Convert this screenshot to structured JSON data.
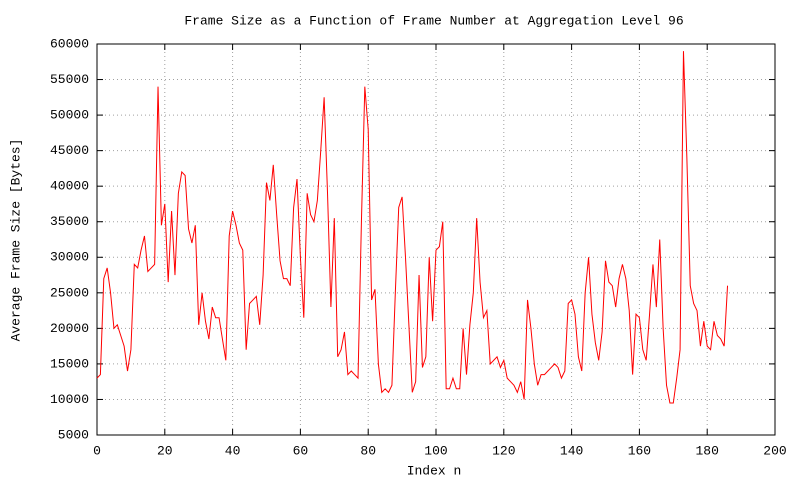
{
  "chart_data": {
    "type": "line",
    "title": "Frame Size as a Function of Frame Number at Aggregation Level 96",
    "x_label": "Index n",
    "y_label": "Average Frame Size [Bytes]",
    "xlim": [
      0,
      200
    ],
    "xticks": [
      0,
      20,
      40,
      60,
      80,
      100,
      120,
      140,
      160,
      180,
      200
    ],
    "ylim": [
      5000,
      60000
    ],
    "yticks": [
      5000,
      10000,
      15000,
      20000,
      25000,
      30000,
      35000,
      40000,
      45000,
      50000,
      55000,
      60000
    ],
    "grid": true,
    "x": [
      0,
      1,
      2,
      3,
      4,
      5,
      6,
      7,
      8,
      9,
      10,
      11,
      12,
      13,
      14,
      15,
      16,
      17,
      18,
      19,
      20,
      21,
      22,
      23,
      24,
      25,
      26,
      27,
      28,
      29,
      30,
      31,
      32,
      33,
      34,
      35,
      36,
      37,
      38,
      39,
      40,
      41,
      42,
      43,
      44,
      45,
      46,
      47,
      48,
      49,
      50,
      51,
      52,
      53,
      54,
      55,
      56,
      57,
      58,
      59,
      60,
      61,
      62,
      63,
      64,
      65,
      66,
      67,
      68,
      69,
      70,
      71,
      72,
      73,
      74,
      75,
      76,
      77,
      78,
      79,
      80,
      81,
      82,
      83,
      84,
      85,
      86,
      87,
      88,
      89,
      90,
      91,
      92,
      93,
      94,
      95,
      96,
      97,
      98,
      99,
      100,
      101,
      102,
      103,
      104,
      105,
      106,
      107,
      108,
      109,
      110,
      111,
      112,
      113,
      114,
      115,
      116,
      117,
      118,
      119,
      120,
      121,
      122,
      123,
      124,
      125,
      126,
      127,
      128,
      129,
      130,
      131,
      132,
      133,
      134,
      135,
      136,
      137,
      138,
      139,
      140,
      141,
      142,
      143,
      144,
      145,
      146,
      147,
      148,
      149,
      150,
      151,
      152,
      153,
      154,
      155,
      156,
      157,
      158,
      159,
      160,
      161,
      162,
      163,
      164,
      165,
      166,
      167,
      168,
      169,
      170,
      171,
      172,
      173,
      174,
      175,
      176,
      177,
      178,
      179,
      180,
      181,
      182,
      183,
      184,
      185,
      186
    ],
    "series": [
      {
        "color": "#ff0000",
        "values": [
          13000,
          13500,
          27000,
          28500,
          25000,
          20000,
          20500,
          19000,
          17500,
          14000,
          17000,
          29000,
          28500,
          31000,
          33000,
          28000,
          28500,
          29000,
          54000,
          34500,
          37500,
          26500,
          36500,
          27500,
          39000,
          42000,
          41500,
          34000,
          32000,
          34500,
          20500,
          25000,
          21000,
          18500,
          23000,
          21500,
          21500,
          18500,
          15500,
          33000,
          36500,
          34500,
          32000,
          31000,
          17000,
          23500,
          24000,
          24500,
          20500,
          27500,
          40500,
          38000,
          43000,
          36000,
          29500,
          27000,
          27000,
          26000,
          37000,
          41000,
          30000,
          21500,
          39000,
          36000,
          35000,
          38000,
          45000,
          52500,
          39000,
          23000,
          35500,
          16000,
          17000,
          19500,
          13500,
          14000,
          13500,
          13000,
          35000,
          54000,
          48000,
          24000,
          25500,
          15000,
          11000,
          11500,
          11000,
          12000,
          25000,
          37000,
          38500,
          30000,
          20500,
          11000,
          12500,
          27500,
          14500,
          16000,
          30000,
          21000,
          31000,
          31500,
          35000,
          11500,
          11500,
          13000,
          11500,
          11500,
          20000,
          13500,
          20500,
          25000,
          35500,
          26500,
          21500,
          22500,
          15000,
          15500,
          16000,
          14500,
          15500,
          13000,
          12500,
          12000,
          11000,
          12500,
          10000,
          24000,
          20000,
          15000,
          12000,
          13500,
          13500,
          14000,
          14500,
          15000,
          14500,
          13000,
          14000,
          23500,
          24000,
          22000,
          16000,
          14000,
          25000,
          30000,
          22000,
          18000,
          15500,
          19500,
          29500,
          26500,
          26000,
          23000,
          27000,
          29000,
          27000,
          22500,
          13500,
          22000,
          21500,
          17000,
          15500,
          22000,
          29000,
          23000,
          32500,
          20000,
          12000,
          9500,
          9500,
          13000,
          17000,
          59000,
          44000,
          26000,
          23500,
          22500,
          17500,
          21000,
          17500,
          17000,
          21000,
          19000,
          18500,
          17500,
          26000
        ]
      }
    ]
  }
}
